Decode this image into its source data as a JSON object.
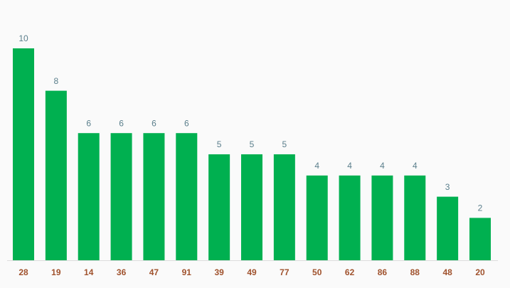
{
  "chart_data": {
    "type": "bar",
    "categories": [
      "28",
      "19",
      "14",
      "36",
      "47",
      "91",
      "39",
      "49",
      "77",
      "50",
      "62",
      "86",
      "88",
      "48",
      "20"
    ],
    "values": [
      10,
      8,
      6,
      6,
      6,
      6,
      5,
      5,
      5,
      4,
      4,
      4,
      4,
      3,
      2
    ],
    "color": "#00b050"
  }
}
